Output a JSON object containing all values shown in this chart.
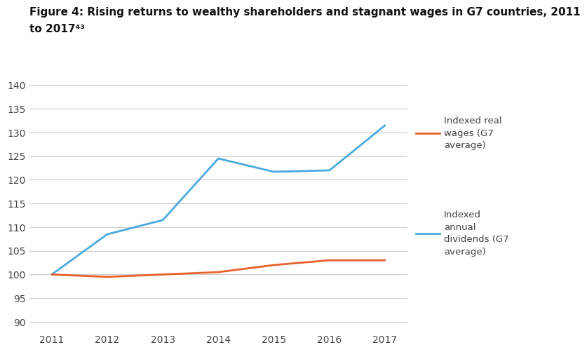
{
  "title_line1": "Figure 4: Rising returns to wealthy shareholders and stagnant wages in G7 countries, 2011",
  "title_line2": "to 2017⁴³",
  "years": [
    2011,
    2012,
    2013,
    2014,
    2015,
    2016,
    2017
  ],
  "dividends": [
    100,
    108.5,
    111.5,
    124.5,
    121.7,
    122.0,
    131.5
  ],
  "wages": [
    100,
    99.5,
    100.0,
    100.5,
    102.0,
    103.0,
    103.0
  ],
  "dividends_color": "#4baade",
  "wages_color": "#e8602c",
  "ylim": [
    88,
    143
  ],
  "yticks": [
    90,
    95,
    100,
    105,
    110,
    115,
    120,
    125,
    130,
    135,
    140
  ],
  "background_color": "#ffffff",
  "grid_color": "#cccccc",
  "line_width": 2.0,
  "title_fontsize": 11,
  "tick_fontsize": 10,
  "legend_fontsize": 9.5
}
